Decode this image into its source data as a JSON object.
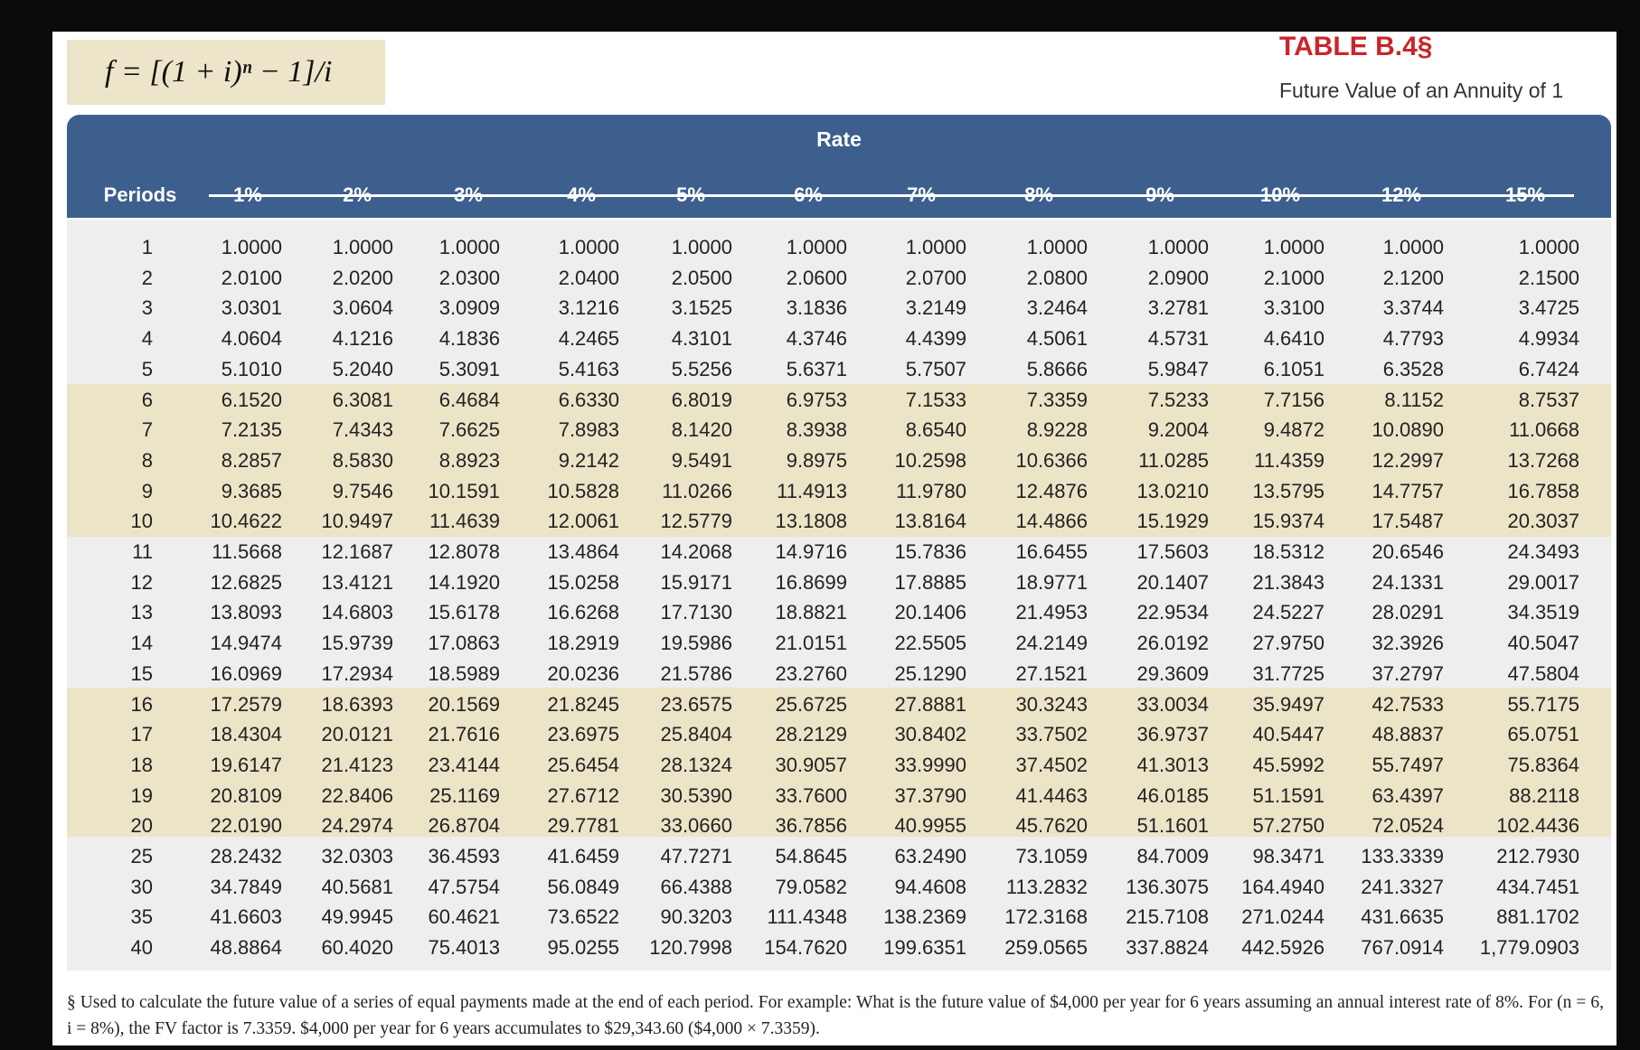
{
  "header": {
    "formula": "f = [(1 + i)ⁿ − 1]/i",
    "title": "TABLE B.4§",
    "subtitle": "Future Value of an Annuity of 1"
  },
  "table": {
    "group_label": "Rate",
    "columns": [
      "Periods",
      "1%",
      "2%",
      "3%",
      "4%",
      "5%",
      "6%",
      "7%",
      "8%",
      "9%",
      "10%",
      "12%",
      "15%"
    ],
    "rows": [
      [
        "1",
        "1.0000",
        "1.0000",
        "1.0000",
        "1.0000",
        "1.0000",
        "1.0000",
        "1.0000",
        "1.0000",
        "1.0000",
        "1.0000",
        "1.0000",
        "1.0000"
      ],
      [
        "2",
        "2.0100",
        "2.0200",
        "2.0300",
        "2.0400",
        "2.0500",
        "2.0600",
        "2.0700",
        "2.0800",
        "2.0900",
        "2.1000",
        "2.1200",
        "2.1500"
      ],
      [
        "3",
        "3.0301",
        "3.0604",
        "3.0909",
        "3.1216",
        "3.1525",
        "3.1836",
        "3.2149",
        "3.2464",
        "3.2781",
        "3.3100",
        "3.3744",
        "3.4725"
      ],
      [
        "4",
        "4.0604",
        "4.1216",
        "4.1836",
        "4.2465",
        "4.3101",
        "4.3746",
        "4.4399",
        "4.5061",
        "4.5731",
        "4.6410",
        "4.7793",
        "4.9934"
      ],
      [
        "5",
        "5.1010",
        "5.2040",
        "5.3091",
        "5.4163",
        "5.5256",
        "5.6371",
        "5.7507",
        "5.8666",
        "5.9847",
        "6.1051",
        "6.3528",
        "6.7424"
      ],
      [
        "6",
        "6.1520",
        "6.3081",
        "6.4684",
        "6.6330",
        "6.8019",
        "6.9753",
        "7.1533",
        "7.3359",
        "7.5233",
        "7.7156",
        "8.1152",
        "8.7537"
      ],
      [
        "7",
        "7.2135",
        "7.4343",
        "7.6625",
        "7.8983",
        "8.1420",
        "8.3938",
        "8.6540",
        "8.9228",
        "9.2004",
        "9.4872",
        "10.0890",
        "11.0668"
      ],
      [
        "8",
        "8.2857",
        "8.5830",
        "8.8923",
        "9.2142",
        "9.5491",
        "9.8975",
        "10.2598",
        "10.6366",
        "11.0285",
        "11.4359",
        "12.2997",
        "13.7268"
      ],
      [
        "9",
        "9.3685",
        "9.7546",
        "10.1591",
        "10.5828",
        "11.0266",
        "11.4913",
        "11.9780",
        "12.4876",
        "13.0210",
        "13.5795",
        "14.7757",
        "16.7858"
      ],
      [
        "10",
        "10.4622",
        "10.9497",
        "11.4639",
        "12.0061",
        "12.5779",
        "13.1808",
        "13.8164",
        "14.4866",
        "15.1929",
        "15.9374",
        "17.5487",
        "20.3037"
      ],
      [
        "11",
        "11.5668",
        "12.1687",
        "12.8078",
        "13.4864",
        "14.2068",
        "14.9716",
        "15.7836",
        "16.6455",
        "17.5603",
        "18.5312",
        "20.6546",
        "24.3493"
      ],
      [
        "12",
        "12.6825",
        "13.4121",
        "14.1920",
        "15.0258",
        "15.9171",
        "16.8699",
        "17.8885",
        "18.9771",
        "20.1407",
        "21.3843",
        "24.1331",
        "29.0017"
      ],
      [
        "13",
        "13.8093",
        "14.6803",
        "15.6178",
        "16.6268",
        "17.7130",
        "18.8821",
        "20.1406",
        "21.4953",
        "22.9534",
        "24.5227",
        "28.0291",
        "34.3519"
      ],
      [
        "14",
        "14.9474",
        "15.9739",
        "17.0863",
        "18.2919",
        "19.5986",
        "21.0151",
        "22.5505",
        "24.2149",
        "26.0192",
        "27.9750",
        "32.3926",
        "40.5047"
      ],
      [
        "15",
        "16.0969",
        "17.2934",
        "18.5989",
        "20.0236",
        "21.5786",
        "23.2760",
        "25.1290",
        "27.1521",
        "29.3609",
        "31.7725",
        "37.2797",
        "47.5804"
      ],
      [
        "16",
        "17.2579",
        "18.6393",
        "20.1569",
        "21.8245",
        "23.6575",
        "25.6725",
        "27.8881",
        "30.3243",
        "33.0034",
        "35.9497",
        "42.7533",
        "55.7175"
      ],
      [
        "17",
        "18.4304",
        "20.0121",
        "21.7616",
        "23.6975",
        "25.8404",
        "28.2129",
        "30.8402",
        "33.7502",
        "36.9737",
        "40.5447",
        "48.8837",
        "65.0751"
      ],
      [
        "18",
        "19.6147",
        "21.4123",
        "23.4144",
        "25.6454",
        "28.1324",
        "30.9057",
        "33.9990",
        "37.4502",
        "41.3013",
        "45.5992",
        "55.7497",
        "75.8364"
      ],
      [
        "19",
        "20.8109",
        "22.8406",
        "25.1169",
        "27.6712",
        "30.5390",
        "33.7600",
        "37.3790",
        "41.4463",
        "46.0185",
        "51.1591",
        "63.4397",
        "88.2118"
      ],
      [
        "20",
        "22.0190",
        "24.2974",
        "26.8704",
        "29.7781",
        "33.0660",
        "36.7856",
        "40.9955",
        "45.7620",
        "51.1601",
        "57.2750",
        "72.0524",
        "102.4436"
      ],
      [
        "25",
        "28.2432",
        "32.0303",
        "36.4593",
        "41.6459",
        "47.7271",
        "54.8645",
        "63.2490",
        "73.1059",
        "84.7009",
        "98.3471",
        "133.3339",
        "212.7930"
      ],
      [
        "30",
        "34.7849",
        "40.5681",
        "47.5754",
        "56.0849",
        "66.4388",
        "79.0582",
        "94.4608",
        "113.2832",
        "136.3075",
        "164.4940",
        "241.3327",
        "434.7451"
      ],
      [
        "35",
        "41.6603",
        "49.9945",
        "60.4621",
        "73.6522",
        "90.3203",
        "111.4348",
        "138.2369",
        "172.3168",
        "215.7108",
        "271.0244",
        "431.6635",
        "881.1702"
      ],
      [
        "40",
        "48.8864",
        "60.4020",
        "75.4013",
        "95.0255",
        "120.7998",
        "154.7620",
        "199.6351",
        "259.0565",
        "337.8824",
        "442.5926",
        "767.0914",
        "1,779.0903"
      ]
    ]
  },
  "footnote": "§ Used to calculate the future value of a series of equal payments made at the end of each period. For example: What is the future value of $4,000 per year for 6 years assuming an annual interest rate of 8%. For (n = 6, i = 8%), the FV factor is 7.3359. $4,000 per year for 6 years accumulates to $29,343.60 ($4,000 × 7.3359)."
}
